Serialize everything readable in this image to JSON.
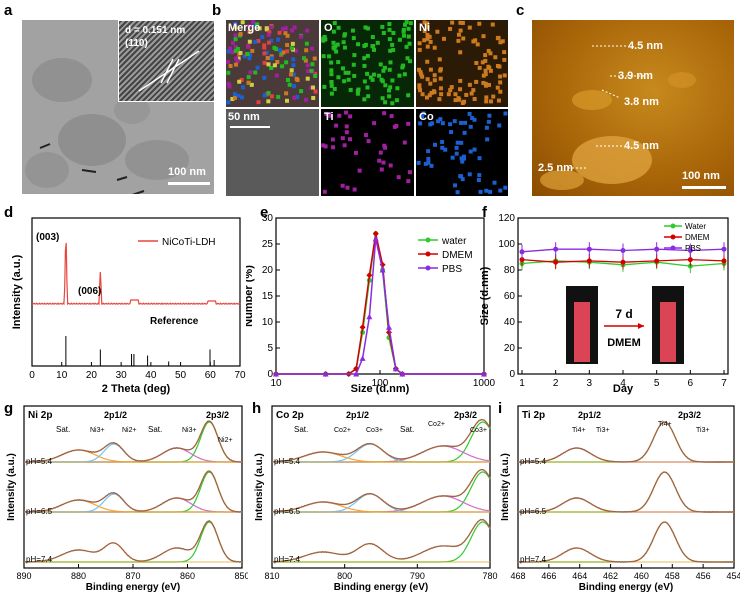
{
  "panels": {
    "a": "a",
    "b": "b",
    "c": "c",
    "d": "d",
    "e": "e",
    "f": "f",
    "g": "g",
    "h": "h",
    "i": "i"
  },
  "tem": {
    "dspacing": "d = 0.151 nm",
    "plane": "(110)",
    "scale": "100 nm"
  },
  "mapping": {
    "tiles": [
      "Merge",
      "O",
      "Ni",
      "",
      "Ti",
      "Co"
    ],
    "scale": "50 nm",
    "colors": {
      "O": "#22b922",
      "Ni": "#cc7a1f",
      "Ti": "#a020a0",
      "Co": "#1c5fcf"
    }
  },
  "afm": {
    "heights": [
      "4.5 nm",
      "3.9 nm",
      "3.8 nm",
      "4.5 nm",
      "2.5 nm"
    ],
    "scale": "100 nm"
  },
  "chart_data": [
    {
      "id": "d",
      "type": "line",
      "xlabel": "2 Theta (deg)",
      "ylabel": "Intensity (a.u.)",
      "xlim": [
        0,
        70
      ],
      "xticks": [
        0,
        10,
        20,
        30,
        40,
        50,
        60,
        70
      ],
      "legend": "NiCoTi-LDH",
      "peaks": [
        "(003)",
        "(006)"
      ],
      "peak_x": [
        11.4,
        23.0
      ],
      "reference_label": "Reference",
      "reference_x": [
        11.4,
        23.0,
        33.5,
        34.3,
        38.9,
        46.0,
        59.9,
        61.3
      ],
      "reference_h": [
        1.0,
        0.55,
        0.4,
        0.4,
        0.35,
        0.15,
        0.55,
        0.2
      ]
    },
    {
      "id": "e",
      "type": "line",
      "xlabel": "Size (d.nm)",
      "ylabel": "Number (%)",
      "xscale": "log",
      "xlim": [
        10,
        1000
      ],
      "ylim": [
        0,
        30
      ],
      "yticks": [
        0,
        5,
        10,
        15,
        20,
        25,
        30
      ],
      "xticks": [
        10,
        100,
        1000
      ],
      "series": [
        {
          "name": "water",
          "color": "#2ecc2e",
          "x": [
            10,
            30,
            50,
            59,
            68,
            79,
            91,
            106,
            122,
            142,
            164,
            1000
          ],
          "y": [
            0,
            0,
            0,
            1,
            8,
            18,
            27,
            20,
            7,
            1,
            0,
            0
          ]
        },
        {
          "name": "DMEM",
          "color": "#d40000",
          "x": [
            10,
            30,
            50,
            59,
            68,
            79,
            91,
            106,
            122,
            142,
            164,
            1000
          ],
          "y": [
            0,
            0,
            0,
            1,
            9,
            19,
            27,
            21,
            8,
            1,
            0,
            0
          ]
        },
        {
          "name": "PBS",
          "color": "#8a2be2",
          "x": [
            10,
            30,
            59,
            68,
            79,
            91,
            106,
            122,
            142,
            164,
            1000
          ],
          "y": [
            0,
            0,
            0,
            3,
            11,
            26,
            20,
            9,
            1,
            0,
            0
          ]
        }
      ]
    },
    {
      "id": "f",
      "type": "line",
      "xlabel": "Day",
      "ylabel": "Size (d.nm)",
      "xlim": [
        1,
        7
      ],
      "ylim": [
        0,
        120
      ],
      "yticks": [
        0,
        20,
        40,
        60,
        80,
        100,
        120
      ],
      "xticks": [
        1,
        2,
        3,
        4,
        5,
        6,
        7
      ],
      "series": [
        {
          "name": "Water",
          "color": "#2ecc2e",
          "x": [
            1,
            2,
            3,
            4,
            5,
            6,
            7
          ],
          "y": [
            85,
            87,
            86,
            84,
            86,
            83,
            85
          ]
        },
        {
          "name": "DMEM",
          "color": "#d40000",
          "x": [
            1,
            2,
            3,
            4,
            5,
            6,
            7
          ],
          "y": [
            88,
            86,
            87,
            86,
            87,
            88,
            87
          ]
        },
        {
          "name": "PBS",
          "color": "#8a2be2",
          "x": [
            1,
            2,
            3,
            4,
            5,
            6,
            7
          ],
          "y": [
            94,
            96,
            96,
            95,
            96,
            95,
            96
          ]
        }
      ],
      "inset": {
        "days": "7 d",
        "medium": "DMEM"
      }
    },
    {
      "id": "g",
      "type": "xps",
      "element": "Ni 2p",
      "xlabel": "Binding energy (eV)",
      "ylabel": "Intensity (a.u.)",
      "xlim": [
        890,
        850
      ],
      "xticks": [
        890,
        880,
        870,
        860,
        850
      ],
      "spectra": [
        {
          "ph": "pH=5.4"
        },
        {
          "ph": "pH=6.5"
        },
        {
          "ph": "pH=7.4"
        }
      ],
      "labels": [
        "Sat.",
        "2p1/2",
        "Ni3+",
        "Ni2+",
        "Sat.",
        "Ni3+",
        "2p3/2",
        "Ni2+"
      ]
    },
    {
      "id": "h",
      "type": "xps",
      "element": "Co 2p",
      "xlabel": "Binding energy (eV)",
      "ylabel": "Intensity (a.u.)",
      "xlim": [
        810,
        780
      ],
      "xticks": [
        810,
        800,
        790,
        780
      ],
      "spectra": [
        {
          "ph": "pH=5.4"
        },
        {
          "ph": "pH=6.5"
        },
        {
          "ph": "pH=7.4"
        }
      ],
      "labels": [
        "Sat.",
        "2p1/2",
        "Co2+",
        "Co3+",
        "Sat.",
        "Co2+",
        "2p3/2",
        "Co3+"
      ]
    },
    {
      "id": "i",
      "type": "xps",
      "element": "Ti 2p",
      "xlabel": "Binding energy (eV)",
      "ylabel": "Intensity (a.u.)",
      "xlim": [
        468,
        454
      ],
      "xticks": [
        468,
        466,
        464,
        462,
        460,
        458,
        456,
        454
      ],
      "spectra": [
        {
          "ph": "pH=5.4"
        },
        {
          "ph": "pH=6.5"
        },
        {
          "ph": "pH=7.4"
        }
      ],
      "labels": [
        "2p1/2",
        "Ti4+",
        "Ti3+",
        "2p3/2",
        "Ti4+",
        "Ti3+"
      ]
    }
  ]
}
